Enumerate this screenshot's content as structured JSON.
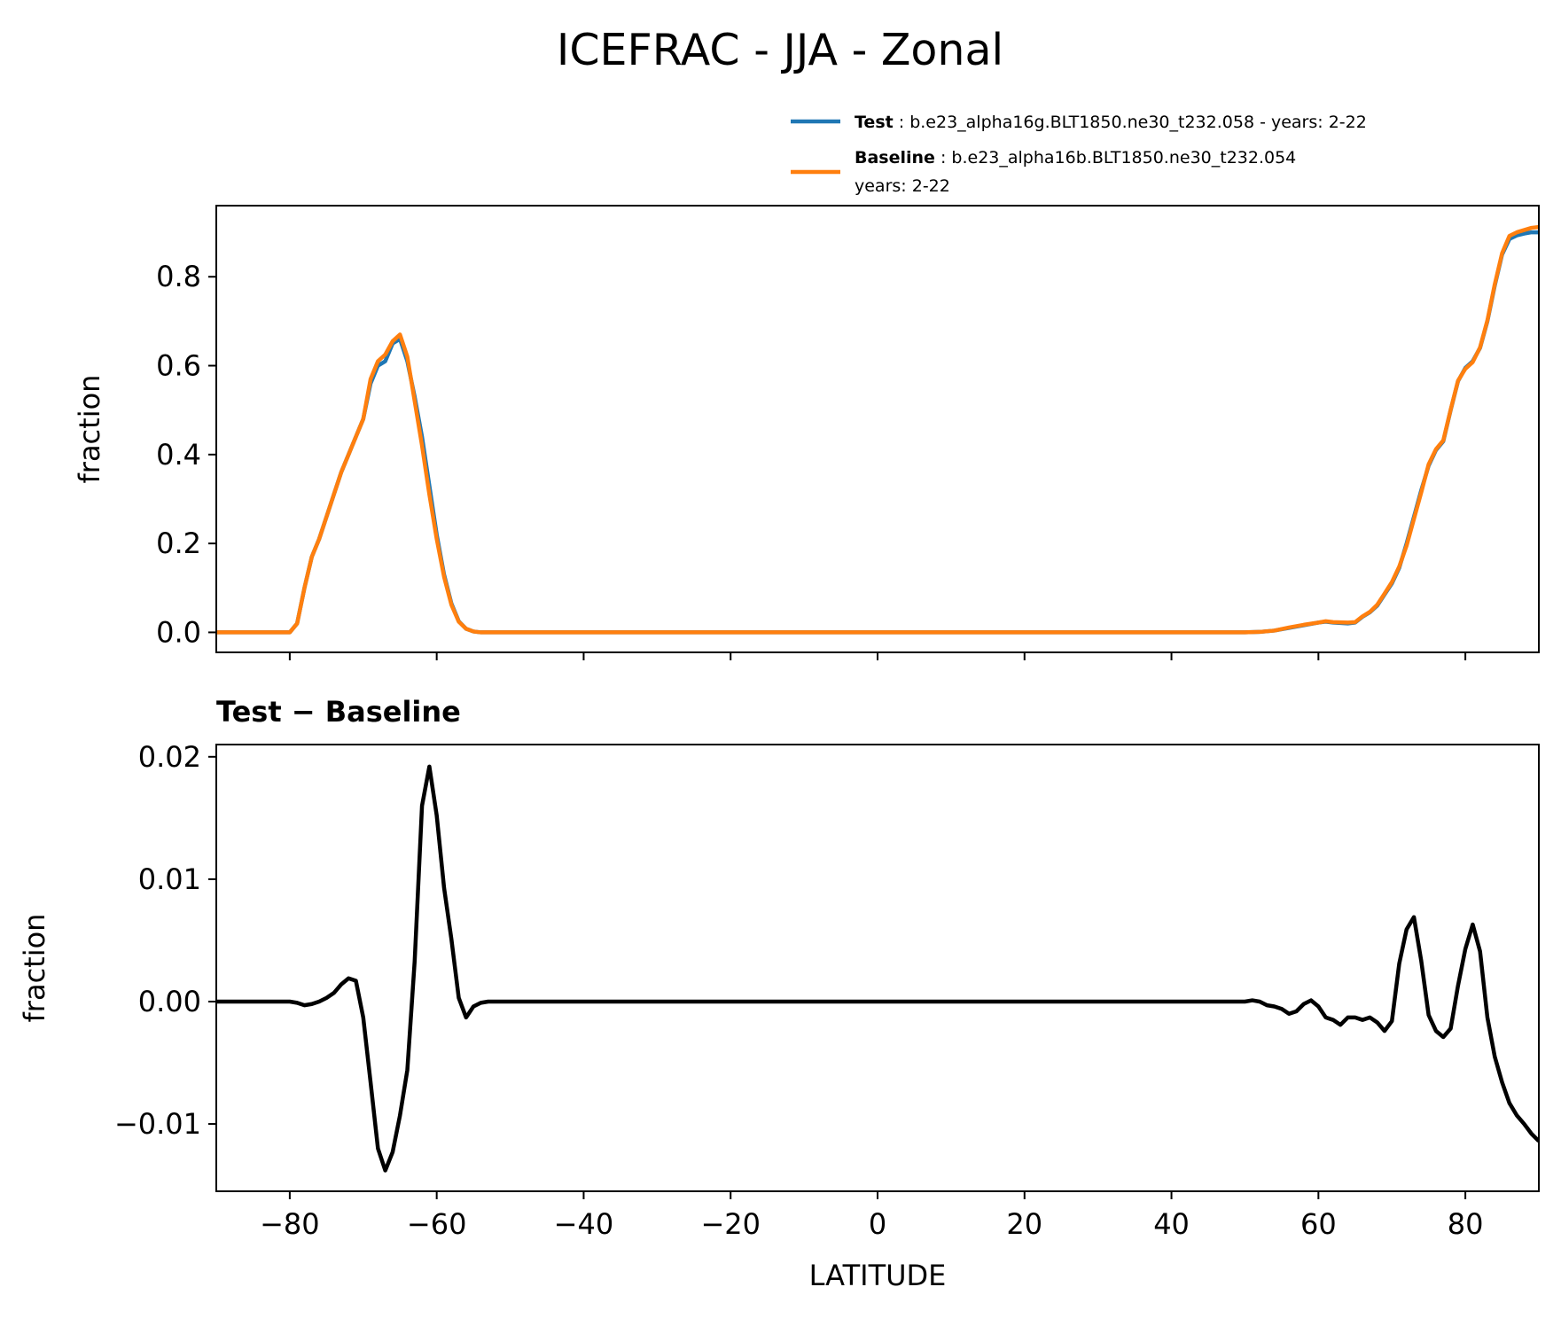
{
  "figure": {
    "title": "ICEFRAC - JJA - Zonal"
  },
  "legend": {
    "entries": [
      {
        "bold": "Test",
        "rest": " : b.e23_alpha16g.BLT1850.ne30_t232.058 - years: 2-22",
        "line2": "",
        "color": "#1f77b4"
      },
      {
        "bold": "Baseline",
        "rest": " : b.e23_alpha16b.BLT1850.ne30_t232.054",
        "line2": "years: 2-22",
        "color": "#ff7f0e"
      }
    ]
  },
  "chart_data": [
    {
      "type": "line",
      "title": "",
      "xlabel": "",
      "ylabel": "fraction",
      "xlim": [
        -90,
        90
      ],
      "ylim": [
        -0.045,
        0.96
      ],
      "yticks": [
        0.0,
        0.2,
        0.4,
        0.6,
        0.8
      ],
      "ytick_labels": [
        "0.0",
        "0.2",
        "0.4",
        "0.6",
        "0.8"
      ],
      "xticks": [
        -80,
        -60,
        -40,
        -20,
        0,
        20,
        40,
        60,
        80
      ],
      "grid": false,
      "legend_position": "above plot, right",
      "series": [
        {
          "name": "Test",
          "color": "#1f77b4",
          "points": [
            [
              -90,
              0
            ],
            [
              -80,
              0
            ],
            [
              -79,
              0.02
            ],
            [
              -78,
              0.1
            ],
            [
              -77,
              0.17
            ],
            [
              -76,
              0.21
            ],
            [
              -75,
              0.26
            ],
            [
              -74,
              0.31
            ],
            [
              -73,
              0.36
            ],
            [
              -72,
              0.4
            ],
            [
              -71,
              0.44
            ],
            [
              -70,
              0.48
            ],
            [
              -69,
              0.56
            ],
            [
              -68,
              0.6
            ],
            [
              -67,
              0.61
            ],
            [
              -66,
              0.65
            ],
            [
              -65,
              0.66
            ],
            [
              -64,
              0.61
            ],
            [
              -63,
              0.53
            ],
            [
              -62,
              0.44
            ],
            [
              -61,
              0.33
            ],
            [
              -60,
              0.22
            ],
            [
              -59,
              0.13
            ],
            [
              -58,
              0.065
            ],
            [
              -57,
              0.025
            ],
            [
              -56,
              0.008
            ],
            [
              -55,
              0.002
            ],
            [
              -54,
              0
            ],
            [
              50,
              0
            ],
            [
              52,
              0.001
            ],
            [
              54,
              0.004
            ],
            [
              56,
              0.01
            ],
            [
              58,
              0.016
            ],
            [
              60,
              0.022
            ],
            [
              61,
              0.024
            ],
            [
              62,
              0.022
            ],
            [
              64,
              0.02
            ],
            [
              65,
              0.022
            ],
            [
              66,
              0.035
            ],
            [
              67,
              0.045
            ],
            [
              68,
              0.06
            ],
            [
              69,
              0.085
            ],
            [
              70,
              0.11
            ],
            [
              71,
              0.145
            ],
            [
              72,
              0.2
            ],
            [
              73,
              0.26
            ],
            [
              74,
              0.32
            ],
            [
              75,
              0.375
            ],
            [
              76,
              0.41
            ],
            [
              77,
              0.43
            ],
            [
              78,
              0.5
            ],
            [
              79,
              0.565
            ],
            [
              80,
              0.595
            ],
            [
              81,
              0.61
            ],
            [
              82,
              0.64
            ],
            [
              83,
              0.7
            ],
            [
              84,
              0.78
            ],
            [
              85,
              0.85
            ],
            [
              86,
              0.885
            ],
            [
              87,
              0.893
            ],
            [
              88,
              0.897
            ],
            [
              89,
              0.9
            ],
            [
              90,
              0.9
            ]
          ]
        },
        {
          "name": "Baseline",
          "color": "#ff7f0e",
          "points": [
            [
              -90,
              0
            ],
            [
              -80,
              0
            ],
            [
              -79,
              0.02
            ],
            [
              -78,
              0.1
            ],
            [
              -77,
              0.17
            ],
            [
              -76,
              0.21
            ],
            [
              -75,
              0.26
            ],
            [
              -74,
              0.31
            ],
            [
              -73,
              0.36
            ],
            [
              -72,
              0.4
            ],
            [
              -71,
              0.44
            ],
            [
              -70,
              0.48
            ],
            [
              -69,
              0.57
            ],
            [
              -68,
              0.61
            ],
            [
              -67,
              0.625
            ],
            [
              -66,
              0.655
            ],
            [
              -65,
              0.67
            ],
            [
              -64,
              0.62
            ],
            [
              -63,
              0.52
            ],
            [
              -62,
              0.42
            ],
            [
              -61,
              0.31
            ],
            [
              -60,
              0.21
            ],
            [
              -59,
              0.125
            ],
            [
              -58,
              0.062
            ],
            [
              -57,
              0.024
            ],
            [
              -56,
              0.008
            ],
            [
              -55,
              0.002
            ],
            [
              -54,
              0
            ],
            [
              50,
              0
            ],
            [
              52,
              0.001
            ],
            [
              54,
              0.004
            ],
            [
              56,
              0.011
            ],
            [
              58,
              0.017
            ],
            [
              60,
              0.022
            ],
            [
              61,
              0.025
            ],
            [
              62,
              0.023
            ],
            [
              64,
              0.022
            ],
            [
              65,
              0.023
            ],
            [
              66,
              0.036
            ],
            [
              67,
              0.046
            ],
            [
              68,
              0.062
            ],
            [
              69,
              0.087
            ],
            [
              70,
              0.113
            ],
            [
              71,
              0.148
            ],
            [
              72,
              0.195
            ],
            [
              73,
              0.255
            ],
            [
              74,
              0.315
            ],
            [
              75,
              0.378
            ],
            [
              76,
              0.412
            ],
            [
              77,
              0.432
            ],
            [
              78,
              0.501
            ],
            [
              79,
              0.566
            ],
            [
              80,
              0.593
            ],
            [
              81,
              0.608
            ],
            [
              82,
              0.641
            ],
            [
              83,
              0.702
            ],
            [
              84,
              0.783
            ],
            [
              85,
              0.853
            ],
            [
              86,
              0.892
            ],
            [
              87,
              0.9
            ],
            [
              88,
              0.905
            ],
            [
              89,
              0.91
            ],
            [
              90,
              0.912
            ]
          ]
        }
      ]
    },
    {
      "type": "line",
      "title": "Test − Baseline",
      "xlabel": "LATITUDE",
      "ylabel": "fraction",
      "xlim": [
        -90,
        90
      ],
      "ylim": [
        -0.0155,
        0.021
      ],
      "yticks": [
        -0.01,
        0.0,
        0.01,
        0.02
      ],
      "ytick_labels": [
        "−0.01",
        "0.00",
        "0.01",
        "0.02"
      ],
      "xticks": [
        -80,
        -60,
        -40,
        -20,
        0,
        20,
        40,
        60,
        80
      ],
      "xtick_labels": [
        "−80",
        "−60",
        "−40",
        "−20",
        "0",
        "20",
        "40",
        "60",
        "80"
      ],
      "grid": false,
      "series": [
        {
          "color": "#000000",
          "points": [
            [
              -90,
              0
            ],
            [
              -80,
              0
            ],
            [
              -79,
              -0.0001
            ],
            [
              -78,
              -0.0003
            ],
            [
              -77,
              -0.0002
            ],
            [
              -76,
              0
            ],
            [
              -75,
              0.0003
            ],
            [
              -74,
              0.0007
            ],
            [
              -73,
              0.0014
            ],
            [
              -72,
              0.0019
            ],
            [
              -71,
              0.0017
            ],
            [
              -70,
              -0.0013
            ],
            [
              -69,
              -0.0066
            ],
            [
              -68,
              -0.012
            ],
            [
              -67,
              -0.0138
            ],
            [
              -66,
              -0.0123
            ],
            [
              -65,
              -0.0093
            ],
            [
              -64,
              -0.0056
            ],
            [
              -63,
              0.0033
            ],
            [
              -62,
              0.016
            ],
            [
              -61,
              0.0192
            ],
            [
              -60,
              0.0152
            ],
            [
              -59,
              0.0093
            ],
            [
              -58,
              0.0051
            ],
            [
              -57,
              0.0003
            ],
            [
              -56,
              -0.0013
            ],
            [
              -55,
              -0.0004
            ],
            [
              -54,
              -0.0001
            ],
            [
              -53,
              0
            ],
            [
              50,
              0
            ],
            [
              51,
              0.0001
            ],
            [
              52,
              0
            ],
            [
              53,
              -0.0003
            ],
            [
              54,
              -0.0004
            ],
            [
              55,
              -0.0006
            ],
            [
              56,
              -0.001
            ],
            [
              57,
              -0.0008
            ],
            [
              58,
              -0.0002
            ],
            [
              59,
              0.0001
            ],
            [
              60,
              -0.0004
            ],
            [
              61,
              -0.0013
            ],
            [
              62,
              -0.0015
            ],
            [
              63,
              -0.0019
            ],
            [
              64,
              -0.0013
            ],
            [
              65,
              -0.0013
            ],
            [
              66,
              -0.0015
            ],
            [
              67,
              -0.0013
            ],
            [
              68,
              -0.0017
            ],
            [
              69,
              -0.0024
            ],
            [
              70,
              -0.0016
            ],
            [
              71,
              0.0031
            ],
            [
              72,
              0.0059
            ],
            [
              73,
              0.0069
            ],
            [
              74,
              0.0033
            ],
            [
              75,
              -0.0011
            ],
            [
              76,
              -0.0024
            ],
            [
              77,
              -0.0029
            ],
            [
              78,
              -0.0022
            ],
            [
              79,
              0.0013
            ],
            [
              80,
              0.0043
            ],
            [
              81,
              0.0063
            ],
            [
              82,
              0.0041
            ],
            [
              83,
              -0.0013
            ],
            [
              84,
              -0.0045
            ],
            [
              85,
              -0.0066
            ],
            [
              86,
              -0.0083
            ],
            [
              87,
              -0.0093
            ],
            [
              88,
              -0.01
            ],
            [
              89,
              -0.0108
            ],
            [
              90,
              -0.0114
            ]
          ]
        }
      ]
    }
  ]
}
